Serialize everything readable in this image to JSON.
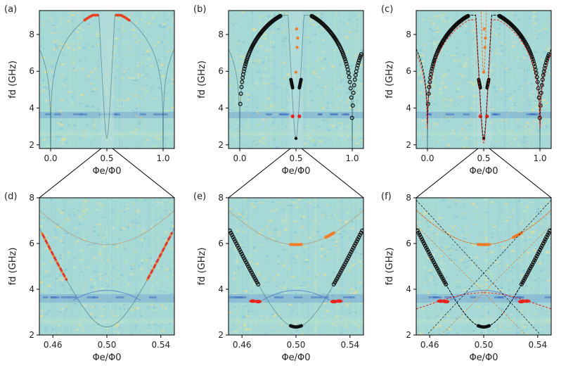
{
  "chart_data": [
    {
      "type": "heatmap",
      "panel": "(a)",
      "xlabel": "Φe/Φ0",
      "ylabel": "fd (GHz)",
      "xlim": [
        -0.1,
        1.1
      ],
      "ylim": [
        1.8,
        9.3
      ],
      "xticks": [
        0.0,
        0.5,
        1.0
      ],
      "xtick_labels": [
        "0.0",
        "0.5",
        "1.0"
      ],
      "yticks": [
        2,
        4,
        6,
        8
      ],
      "ytick_labels": [
        "2",
        "4",
        "6",
        "8"
      ],
      "overlay": "spectroscopy only"
    },
    {
      "type": "heatmap",
      "panel": "(b)",
      "xlabel": "Φe/Φ0",
      "ylabel": "fd (GHz)",
      "xlim": [
        -0.1,
        1.1
      ],
      "ylim": [
        1.8,
        9.3
      ],
      "xticks": [
        0.0,
        0.5,
        1.0
      ],
      "xtick_labels": [
        "0.0",
        "0.5",
        "1.0"
      ],
      "yticks": [
        2,
        4,
        6,
        8
      ],
      "ytick_labels": [
        "2",
        "4",
        "6",
        "8"
      ],
      "overlay": "extracted peaks"
    },
    {
      "type": "heatmap",
      "panel": "(c)",
      "xlabel": "Φe/Φ0",
      "ylabel": "fd (GHz)",
      "xlim": [
        -0.1,
        1.1
      ],
      "ylim": [
        1.8,
        9.3
      ],
      "xticks": [
        0.0,
        0.5,
        1.0
      ],
      "xtick_labels": [
        "0.0",
        "0.5",
        "1.0"
      ],
      "yticks": [
        2,
        4,
        6,
        8
      ],
      "ytick_labels": [
        "2",
        "4",
        "6",
        "8"
      ],
      "overlay": "peaks + model fit"
    },
    {
      "type": "heatmap",
      "panel": "(d)",
      "xlabel": "Φe/Φ0",
      "ylabel": "fd (GHz)",
      "xlim": [
        0.45,
        0.55
      ],
      "ylim": [
        2.0,
        8.0
      ],
      "xticks": [
        0.46,
        0.5,
        0.54
      ],
      "xtick_labels": [
        "0.46",
        "0.50",
        "0.54"
      ],
      "yticks": [
        2,
        4,
        6,
        8
      ],
      "ytick_labels": [
        "2",
        "4",
        "6",
        "8"
      ],
      "overlay": "spectroscopy only"
    },
    {
      "type": "heatmap",
      "panel": "(e)",
      "xlabel": "Φe/Φ0",
      "ylabel": "fd (GHz)",
      "xlim": [
        0.45,
        0.55
      ],
      "ylim": [
        2.0,
        8.0
      ],
      "xticks": [
        0.46,
        0.5,
        0.54
      ],
      "xtick_labels": [
        "0.46",
        "0.50",
        "0.54"
      ],
      "yticks": [
        2,
        4,
        6,
        8
      ],
      "ytick_labels": [
        "2",
        "4",
        "6",
        "8"
      ],
      "overlay": "extracted peaks"
    },
    {
      "type": "heatmap",
      "panel": "(f)",
      "xlabel": "Φe/Φ0",
      "ylabel": "fd (GHz)",
      "xlim": [
        0.45,
        0.55
      ],
      "ylim": [
        2.0,
        8.0
      ],
      "xticks": [
        0.46,
        0.5,
        0.54
      ],
      "xtick_labels": [
        "0.46",
        "0.50",
        "0.54"
      ],
      "yticks": [
        2,
        4,
        6,
        8
      ],
      "ytick_labels": [
        "2",
        "4",
        "6",
        "8"
      ],
      "overlay": "peaks + model fit"
    }
  ],
  "physics": {
    "qubit_max_GHz": 9.05,
    "qubit_min_GHz": 2.35,
    "qubit_slope_GHz_per_flux0": 125,
    "resonator_GHz": 3.6,
    "two_photon_min_GHz": 5.95,
    "two_photon_slope_GHz_per_flux0": 90
  },
  "colors": {
    "background": "#a6d9d6",
    "black_points": "#111111",
    "red_points": "#e8231b",
    "orange_points": "#f07d2a",
    "blue_stripe": "#5b8fd0",
    "yellow_speckle": "#f2e08a",
    "black_fit": "#000000",
    "red_fit": "#e8231b",
    "orange_fit": "#e0772a"
  }
}
